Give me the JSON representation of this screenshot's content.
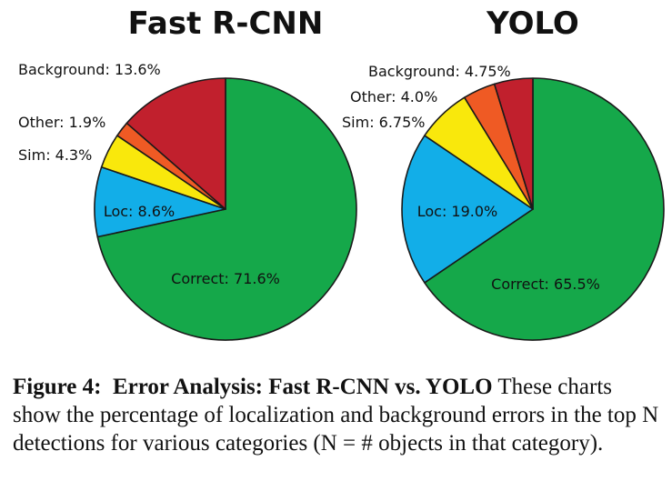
{
  "chart_data": [
    {
      "type": "pie",
      "title": "Fast R-CNN",
      "slices": [
        {
          "label": "Correct: 71.6%",
          "value": 71.6,
          "color": "#15a84a"
        },
        {
          "label": "Loc: 8.6%",
          "value": 8.6,
          "color": "#12aee8"
        },
        {
          "label": "Sim: 4.3%",
          "value": 4.3,
          "color": "#f9e80c"
        },
        {
          "label": "Other: 1.9%",
          "value": 1.9,
          "color": "#ef5a24"
        },
        {
          "label": "Background: 13.6%",
          "value": 13.6,
          "color": "#c1202d"
        }
      ]
    },
    {
      "type": "pie",
      "title": "YOLO",
      "slices": [
        {
          "label": "Correct: 65.5%",
          "value": 65.5,
          "color": "#15a84a"
        },
        {
          "label": "Loc: 19.0%",
          "value": 19.0,
          "color": "#12aee8"
        },
        {
          "label": "Sim: 6.75%",
          "value": 6.75,
          "color": "#f9e80c"
        },
        {
          "label": "Other: 4.0%",
          "value": 4.0,
          "color": "#ef5a24"
        },
        {
          "label": "Background: 4.75%",
          "value": 4.75,
          "color": "#c1202d"
        }
      ]
    }
  ],
  "caption": {
    "figure_label": "Figure 4:",
    "bold_title": "Error Analysis: Fast R-CNN vs. YOLO",
    "body": "These charts show the percentage of localization and background errors in the top N detections for various categories (N = # objects in that category)."
  }
}
